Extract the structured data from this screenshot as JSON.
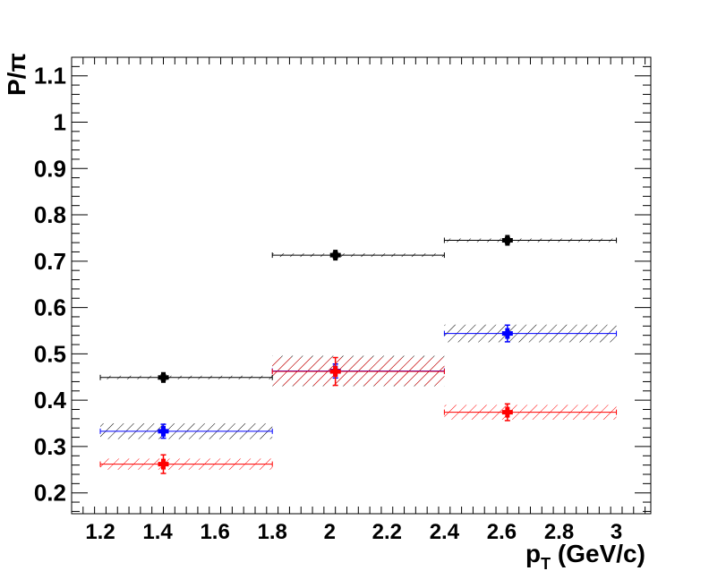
{
  "chart_data": {
    "type": "scatter",
    "title": "",
    "xlabel": "p",
    "xlabel_sub": "T",
    "xlabel_unit": " (GeV/c)",
    "ylabel": "P/π",
    "xlim": [
      1.1,
      3.12
    ],
    "ylim": [
      0.155,
      1.14
    ],
    "x_ticks": [
      1.2,
      1.4,
      1.6,
      1.8,
      2,
      2.2,
      2.4,
      2.6,
      2.8,
      3
    ],
    "x_tick_labels": [
      "1.2",
      "1.4",
      "1.6",
      "1.8",
      "2",
      "2.2",
      "2.4",
      "2.6",
      "2.8",
      "3"
    ],
    "y_ticks": [
      0.2,
      0.3,
      0.4,
      0.5,
      0.6,
      0.7,
      0.8,
      0.9,
      1,
      1.1
    ],
    "y_tick_labels": [
      "0.2",
      "0.3",
      "0.4",
      "0.5",
      "0.6",
      "0.7",
      "0.8",
      "0.9",
      "1",
      "1.1"
    ],
    "grid": false,
    "series": [
      {
        "color": "#000000",
        "bins": [
          [
            1.2,
            1.8
          ],
          [
            1.8,
            2.4
          ],
          [
            2.4,
            3.0
          ]
        ],
        "x": [
          1.42,
          2.02,
          2.62
        ],
        "y": [
          0.449,
          0.713,
          0.745
        ],
        "stat_err": [
          0.006,
          0.006,
          0.006
        ],
        "sys_err": [
          0.0,
          0.0,
          0.004
        ]
      },
      {
        "color": "#0000ff",
        "bins": [
          [
            1.2,
            1.8
          ],
          [
            1.8,
            2.4
          ],
          [
            2.4,
            3.0
          ]
        ],
        "x": [
          1.42,
          2.02,
          2.62
        ],
        "y": [
          0.333,
          0.463,
          0.544
        ],
        "stat_err": [
          0.015,
          0.015,
          0.018
        ],
        "sys_err": [
          0.017,
          0.033,
          0.019
        ]
      },
      {
        "color": "#ff0000",
        "bins": [
          [
            1.2,
            1.8
          ],
          [
            1.8,
            2.4
          ],
          [
            2.4,
            3.0
          ]
        ],
        "x": [
          1.42,
          2.02,
          2.62
        ],
        "y": [
          0.262,
          0.462,
          0.374
        ],
        "stat_err": [
          0.02,
          0.03,
          0.018
        ],
        "sys_err": [
          0.012,
          0.03,
          0.016
        ]
      }
    ]
  }
}
